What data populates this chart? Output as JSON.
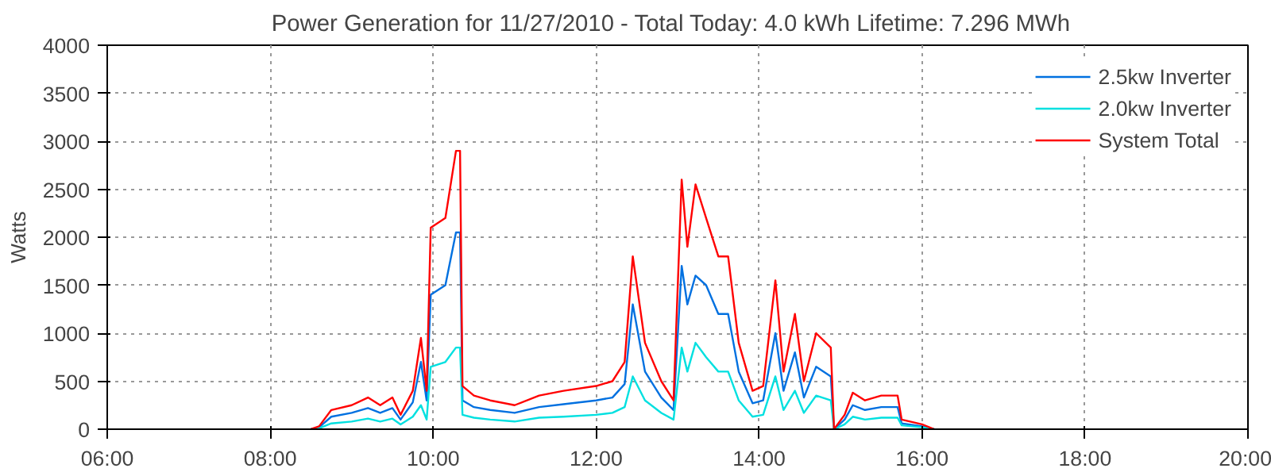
{
  "chart_data": {
    "type": "line",
    "title": "Power Generation for 11/27/2010 - Total Today: 4.0 kWh   Lifetime: 7.296 MWh",
    "ylabel": "Watts",
    "x": [
      8.5,
      8.6,
      8.75,
      9.0,
      9.2,
      9.35,
      9.5,
      9.6,
      9.75,
      9.85,
      9.92,
      9.97,
      10.15,
      10.28,
      10.33,
      10.36,
      10.5,
      10.7,
      11.0,
      11.3,
      11.6,
      12.0,
      12.2,
      12.35,
      12.45,
      12.6,
      12.8,
      12.95,
      13.05,
      13.12,
      13.22,
      13.35,
      13.5,
      13.62,
      13.75,
      13.92,
      14.05,
      14.2,
      14.3,
      14.44,
      14.55,
      14.7,
      14.88,
      14.92,
      15.05,
      15.15,
      15.3,
      15.5,
      15.7,
      15.75,
      16.0,
      16.15
    ],
    "series": [
      {
        "name": "2.5kw Inverter",
        "color": "#0070e0",
        "values": [
          0,
          20,
          130,
          170,
          220,
          170,
          220,
          100,
          280,
          700,
          300,
          1400,
          1500,
          2050,
          2050,
          300,
          230,
          200,
          170,
          230,
          260,
          300,
          330,
          470,
          1300,
          600,
          330,
          200,
          1700,
          1300,
          1600,
          1500,
          1200,
          1200,
          600,
          270,
          300,
          1000,
          400,
          800,
          330,
          650,
          550,
          0,
          100,
          250,
          200,
          230,
          230,
          60,
          30,
          0
        ]
      },
      {
        "name": "2.0kw Inverter",
        "color": "#00e0e0",
        "values": [
          0,
          10,
          60,
          80,
          110,
          80,
          110,
          50,
          130,
          250,
          100,
          650,
          700,
          850,
          850,
          150,
          120,
          100,
          80,
          120,
          130,
          150,
          170,
          230,
          550,
          300,
          170,
          100,
          850,
          600,
          900,
          750,
          600,
          600,
          300,
          130,
          150,
          550,
          200,
          400,
          170,
          350,
          300,
          0,
          50,
          130,
          100,
          120,
          120,
          40,
          20,
          0
        ]
      },
      {
        "name": "System Total",
        "color": "#ff0000",
        "values": [
          0,
          30,
          200,
          250,
          330,
          250,
          330,
          150,
          400,
          950,
          400,
          2100,
          2200,
          2900,
          2900,
          450,
          350,
          300,
          250,
          350,
          400,
          450,
          500,
          700,
          1800,
          900,
          500,
          300,
          2600,
          1900,
          2550,
          2200,
          1800,
          1800,
          900,
          400,
          450,
          1550,
          600,
          1200,
          500,
          1000,
          850,
          0,
          150,
          380,
          300,
          350,
          350,
          100,
          50,
          0
        ]
      }
    ],
    "xlim": [
      6,
      20
    ],
    "xticks": [
      {
        "value": 6,
        "label": "06:00"
      },
      {
        "value": 8,
        "label": "08:00"
      },
      {
        "value": 10,
        "label": "10:00"
      },
      {
        "value": 12,
        "label": "12:00"
      },
      {
        "value": 14,
        "label": "14:00"
      },
      {
        "value": 16,
        "label": "16:00"
      },
      {
        "value": 18,
        "label": "18:00"
      },
      {
        "value": 20,
        "label": "20:00"
      }
    ],
    "ylim": [
      0,
      4000
    ],
    "yticks": [
      0,
      500,
      1000,
      1500,
      2000,
      2500,
      3000,
      3500,
      4000
    ],
    "grid": true,
    "legend": "top right",
    "line_style": "solid",
    "marker": "none"
  }
}
